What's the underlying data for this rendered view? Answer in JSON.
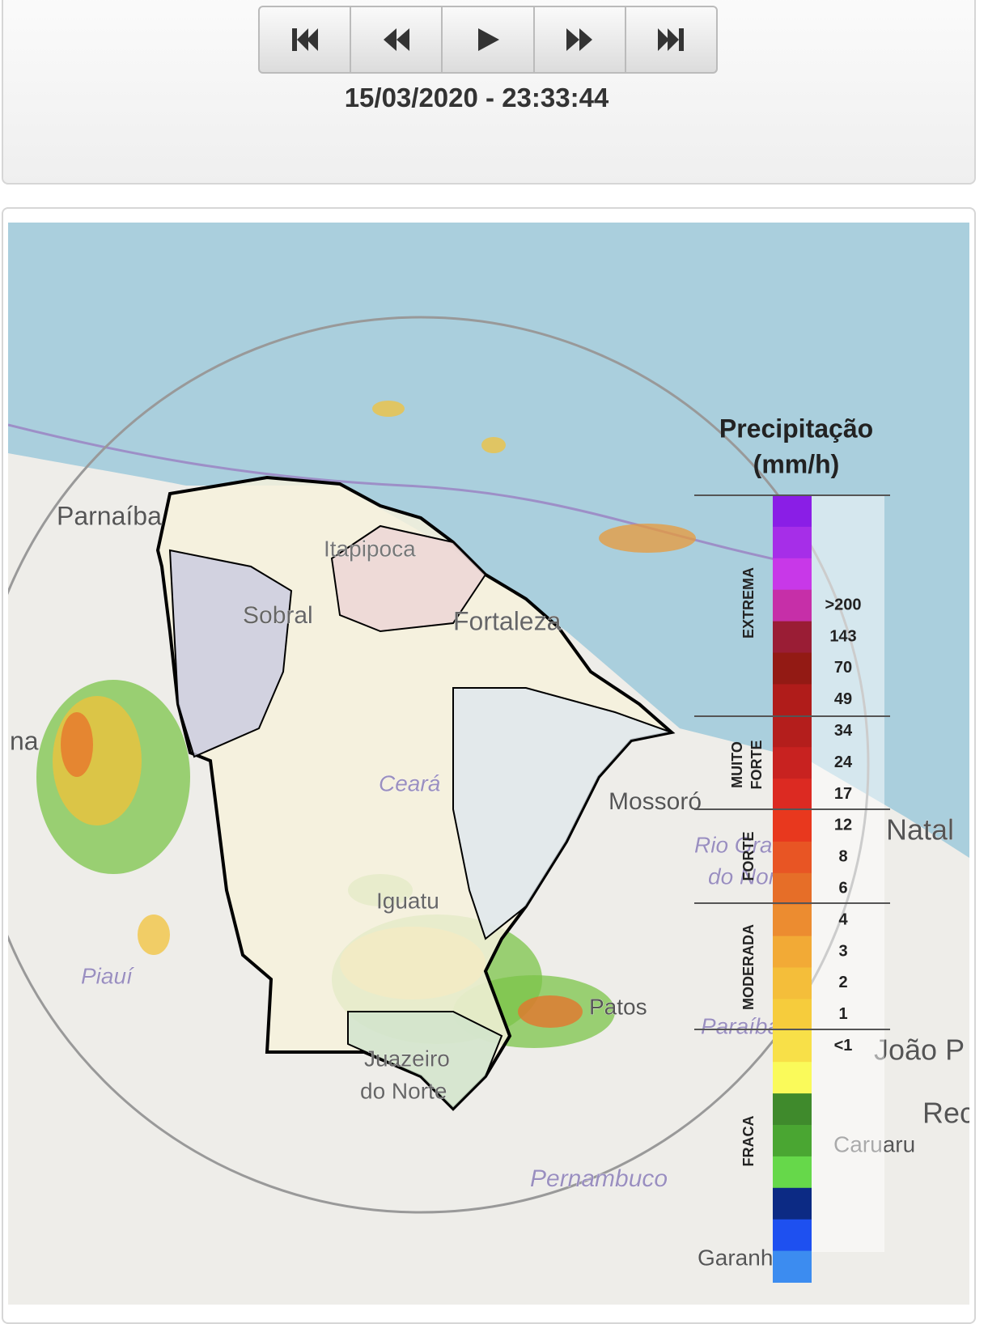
{
  "player": {
    "timestamp": "15/03/2020 - 23:33:44"
  },
  "map": {
    "labels": [
      "Parnaíba",
      "na",
      "Sobral",
      "Itapipoca",
      "Fortaleza",
      "Ceará",
      "Mossoró",
      "Natal",
      "Rio Grande",
      "do Norte",
      "Iguatu",
      "Piauí",
      "Patos",
      "Paraíba",
      "João P",
      "Juazeiro",
      "do Norte",
      "Rec",
      "Caruaru",
      "Pernambuco",
      "Garanhuns"
    ]
  },
  "legend": {
    "title": [
      "Precipitação",
      "(mm/h)"
    ],
    "categories": [
      "EXTREMA",
      "MUITO FORTE",
      "FORTE",
      "MODERADA",
      "FRACA"
    ],
    "labels": [
      ">200",
      "143",
      "70",
      "49",
      "34",
      "24",
      "17",
      "12",
      "8",
      "6",
      "4",
      "3",
      "2",
      "1",
      "<1"
    ],
    "colors": [
      "#8a1ee6",
      "#a62ee8",
      "#c838e8",
      "#c62fa8",
      "#9a1d35",
      "#931a14",
      "#b01c1a",
      "#b41e1c",
      "#c82220",
      "#dc2a22",
      "#e8381e",
      "#e85524",
      "#e66e28",
      "#ec8c30",
      "#f2aa36",
      "#f4be3a",
      "#f6cc3c",
      "#f8e048",
      "#fafa5a",
      "#3f8a2c",
      "#4aa632",
      "#66d84a",
      "#0c2a84",
      "#1e50f0",
      "#3c8cf0"
    ]
  }
}
